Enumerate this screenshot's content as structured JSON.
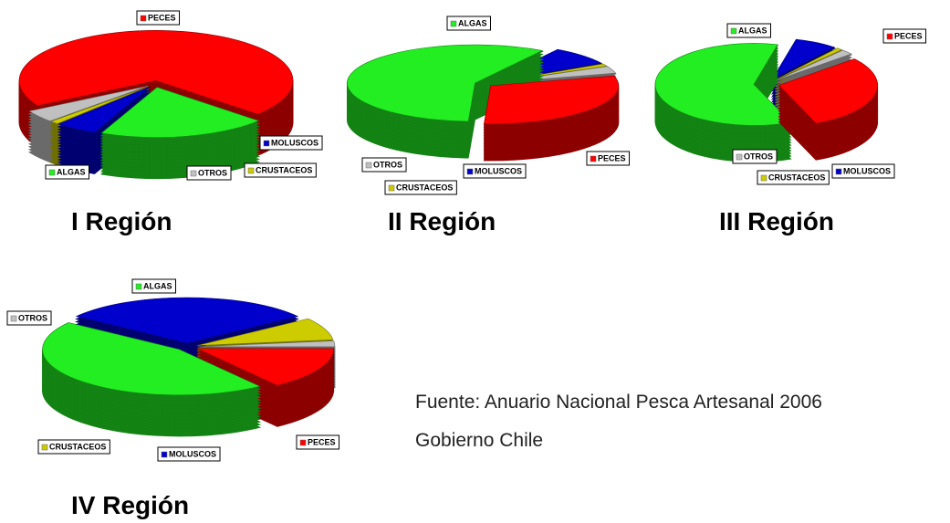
{
  "chart_data": [
    {
      "type": "pie",
      "title": "I Región",
      "categories": [
        "PECES",
        "ALGAS",
        "MOLUSCOS",
        "CRUSTACEOS",
        "OTROS"
      ],
      "values": [
        70,
        20,
        5,
        1,
        4
      ],
      "colors": [
        "#ff0000",
        "#22ee22",
        "#0000cc",
        "#cccc00",
        "#c0c0c0"
      ]
    },
    {
      "type": "pie",
      "title": "II  Región",
      "categories": [
        "PECES",
        "ALGAS",
        "MOLUSCOS",
        "CRUSTACEOS",
        "OTROS"
      ],
      "values": [
        30,
        58,
        8,
        1,
        3
      ],
      "colors": [
        "#ff0000",
        "#22ee22",
        "#0000cc",
        "#cccc00",
        "#c0c0c0"
      ]
    },
    {
      "type": "pie",
      "title": "III Región",
      "categories": [
        "PECES",
        "ALGAS",
        "MOLUSCOS",
        "CRUSTACEOS",
        "OTROS"
      ],
      "values": [
        30,
        60,
        7,
        1,
        2
      ],
      "colors": [
        "#ff0000",
        "#22ee22",
        "#0000cc",
        "#cccc00",
        "#c0c0c0"
      ]
    },
    {
      "type": "pie",
      "title": "IV Región",
      "categories": [
        "PECES",
        "ALGAS",
        "MOLUSCOS",
        "CRUSTACEOS",
        "OTROS"
      ],
      "values": [
        15,
        45,
        30,
        8,
        2
      ],
      "colors": [
        "#ff0000",
        "#22ee22",
        "#0000cc",
        "#cccc00",
        "#c0c0c0"
      ]
    }
  ],
  "source": [
    "Fuente: Anuario Nacional Pesca Artesanal 2006",
    "Gobierno Chile"
  ]
}
